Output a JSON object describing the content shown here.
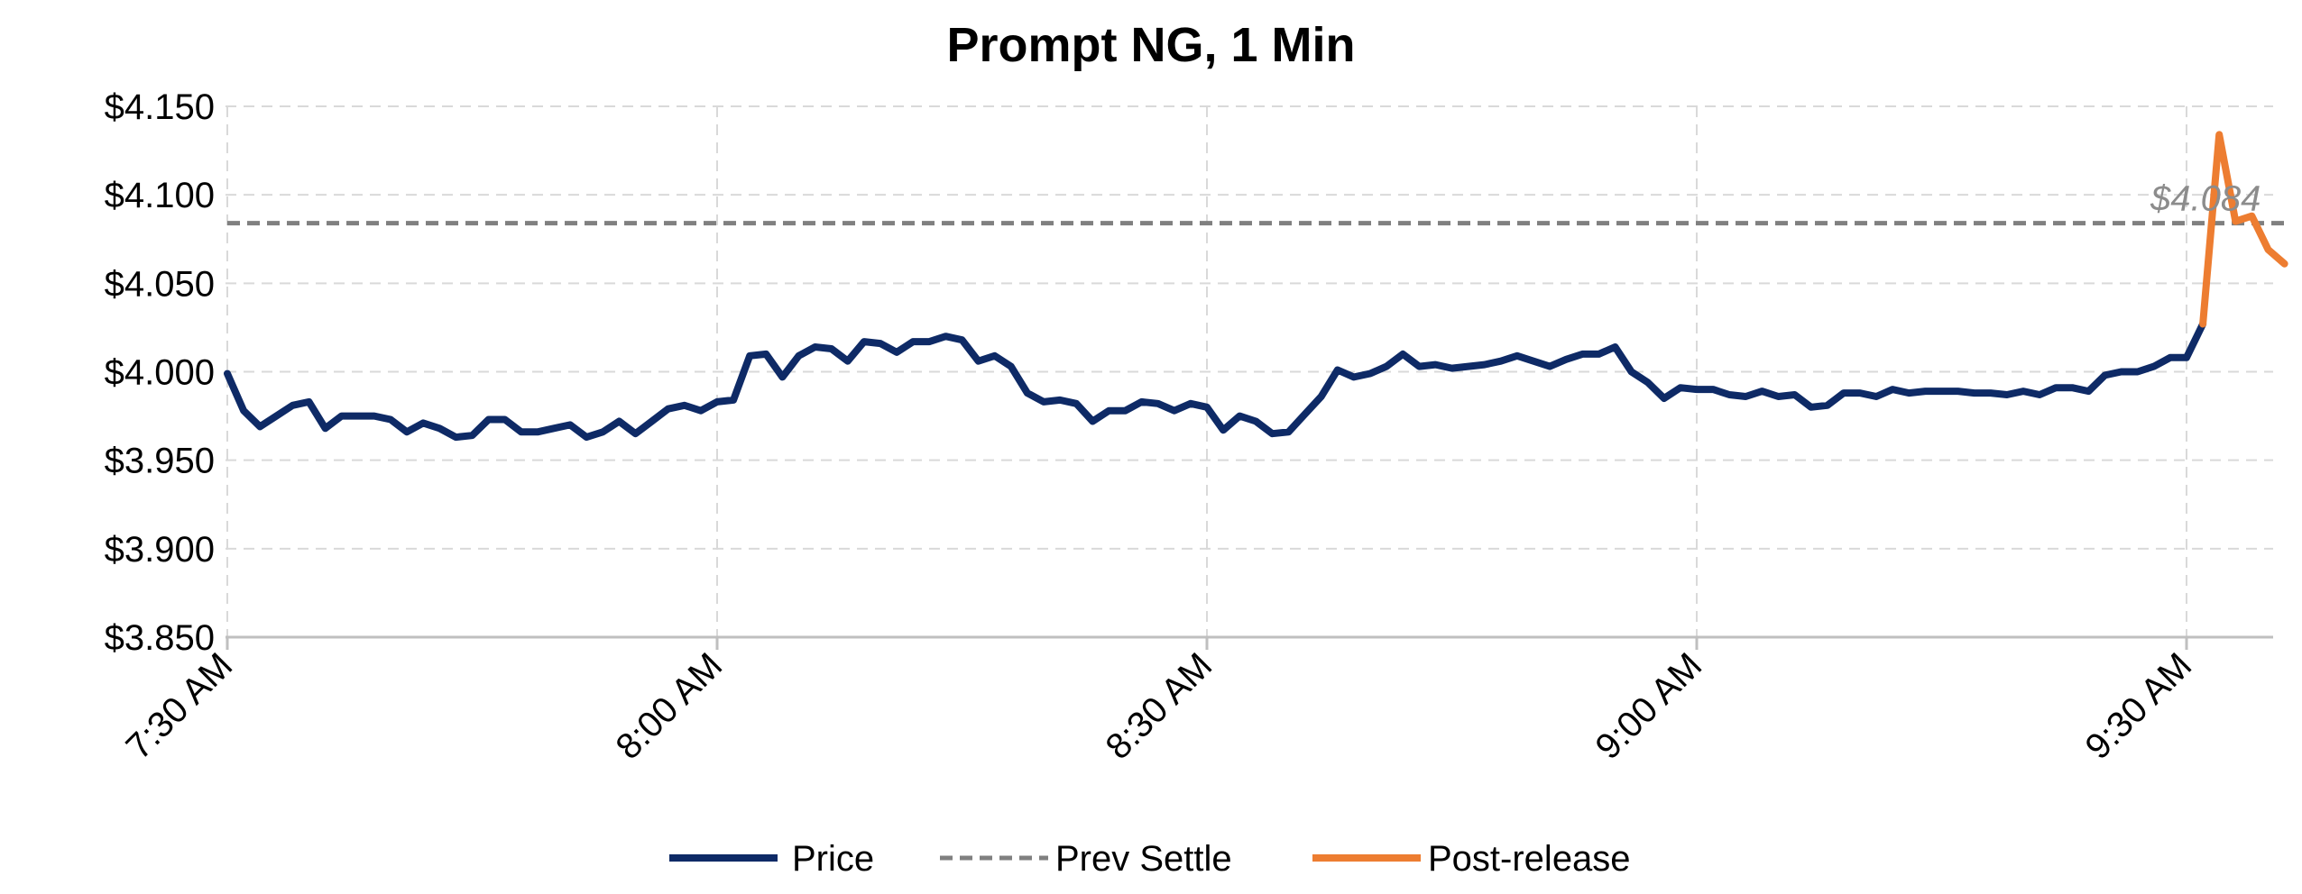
{
  "chart_data": {
    "type": "line",
    "title": "Prompt NG, 1 Min",
    "xlabel": "",
    "ylabel": "",
    "ylim": [
      3.85,
      4.15
    ],
    "y_ticks": [
      "$4.150",
      "$4.100",
      "$4.050",
      "$4.000",
      "$3.950",
      "$3.900",
      "$3.850"
    ],
    "y_tick_values": [
      4.15,
      4.1,
      4.05,
      4.0,
      3.95,
      3.9,
      3.85
    ],
    "x_range_minutes": [
      0,
      126
    ],
    "x_ticks": [
      "7:30 AM",
      "8:00 AM",
      "8:30 AM",
      "9:00 AM",
      "9:30 AM"
    ],
    "x_tick_minutes": [
      0,
      30,
      60,
      90,
      120
    ],
    "grid": true,
    "legend_position": "bottom",
    "series": [
      {
        "name": "Price",
        "color": "#0e2a66",
        "style": "solid",
        "x": [
          0,
          1,
          2,
          3,
          4,
          5,
          6,
          7,
          8,
          9,
          10,
          11,
          12,
          13,
          14,
          15,
          16,
          17,
          18,
          19,
          20,
          21,
          22,
          23,
          24,
          25,
          26,
          27,
          28,
          29,
          30,
          31,
          32,
          33,
          34,
          35,
          36,
          37,
          38,
          39,
          40,
          41,
          42,
          43,
          44,
          45,
          46,
          47,
          48,
          49,
          50,
          51,
          52,
          53,
          54,
          55,
          56,
          57,
          58,
          59,
          60,
          61,
          62,
          63,
          64,
          65,
          66,
          67,
          68,
          69,
          70,
          71,
          72,
          73,
          74,
          75,
          76,
          77,
          78,
          79,
          80,
          81,
          82,
          83,
          84,
          85,
          86,
          87,
          88,
          89,
          90,
          91,
          92,
          93,
          94,
          95,
          96,
          97,
          98,
          99,
          100,
          101,
          102,
          103,
          104,
          105,
          106,
          107,
          108,
          109,
          110,
          111,
          112,
          113,
          114,
          115,
          116,
          117,
          118,
          119,
          120,
          121
        ],
        "values": [
          3.999,
          3.978,
          3.969,
          3.975,
          3.981,
          3.983,
          3.968,
          3.975,
          3.975,
          3.975,
          3.973,
          3.966,
          3.971,
          3.968,
          3.963,
          3.964,
          3.973,
          3.973,
          3.966,
          3.966,
          3.968,
          3.97,
          3.963,
          3.966,
          3.972,
          3.965,
          3.972,
          3.979,
          3.981,
          3.978,
          3.983,
          3.984,
          4.009,
          4.01,
          3.997,
          4.009,
          4.014,
          4.013,
          4.006,
          4.017,
          4.016,
          4.011,
          4.017,
          4.017,
          4.02,
          4.018,
          4.006,
          4.009,
          4.003,
          3.988,
          3.983,
          3.984,
          3.982,
          3.972,
          3.978,
          3.978,
          3.983,
          3.982,
          3.978,
          3.982,
          3.98,
          3.967,
          3.975,
          3.972,
          3.965,
          3.966,
          3.976,
          3.986,
          4.001,
          3.997,
          3.999,
          4.003,
          4.01,
          4.003,
          4.004,
          4.002,
          4.003,
          4.004,
          4.006,
          4.009,
          4.006,
          4.003,
          4.007,
          4.01,
          4.01,
          4.014,
          4.0,
          3.994,
          3.985,
          3.991,
          3.99,
          3.99,
          3.987,
          3.986,
          3.989,
          3.986,
          3.987,
          3.98,
          3.981,
          3.988,
          3.988,
          3.986,
          3.99,
          3.988,
          3.989,
          3.989,
          3.989,
          3.988,
          3.988,
          3.987,
          3.989,
          3.987,
          3.991,
          3.991,
          3.989,
          3.998,
          4.0,
          4.0,
          4.003,
          4.008,
          4.008,
          4.027
        ]
      },
      {
        "name": "Prev Settle",
        "color": "#808080",
        "style": "dashed",
        "x": [
          0,
          126
        ],
        "values": [
          4.084,
          4.084
        ]
      },
      {
        "name": "Post-release",
        "color": "#ed7d31",
        "style": "solid",
        "x": [
          121,
          122,
          123,
          124,
          125,
          126
        ],
        "values": [
          4.027,
          4.134,
          4.085,
          4.088,
          4.069,
          4.061
        ]
      }
    ],
    "annotations": [
      {
        "text": "$4.084",
        "x": 124,
        "y": 4.084
      }
    ]
  }
}
